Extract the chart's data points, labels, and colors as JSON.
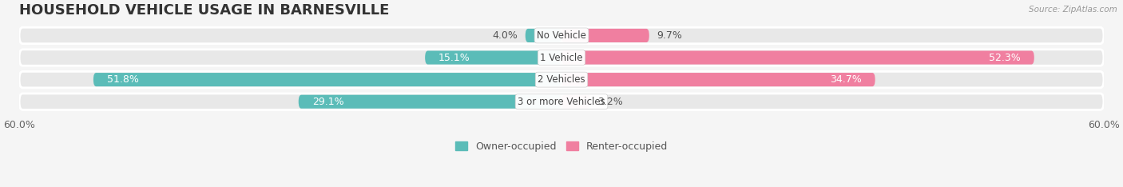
{
  "title": "HOUSEHOLD VEHICLE USAGE IN BARNESVILLE",
  "source": "Source: ZipAtlas.com",
  "categories": [
    "No Vehicle",
    "1 Vehicle",
    "2 Vehicles",
    "3 or more Vehicles"
  ],
  "owner_values": [
    4.0,
    15.1,
    51.8,
    29.1
  ],
  "renter_values": [
    9.7,
    52.3,
    34.7,
    3.2
  ],
  "owner_color": "#5bbcb8",
  "renter_color": "#f07fa0",
  "owner_label": "Owner-occupied",
  "renter_label": "Renter-occupied",
  "axis_limit": 60.0,
  "bar_height": 0.62,
  "background_color": "#f0f0f0",
  "bar_bg_color": "#e2e2e2",
  "row_bg_color": "#e8e8e8",
  "title_fontsize": 13,
  "label_fontsize": 9,
  "category_fontsize": 8.5,
  "axis_label_fontsize": 9
}
